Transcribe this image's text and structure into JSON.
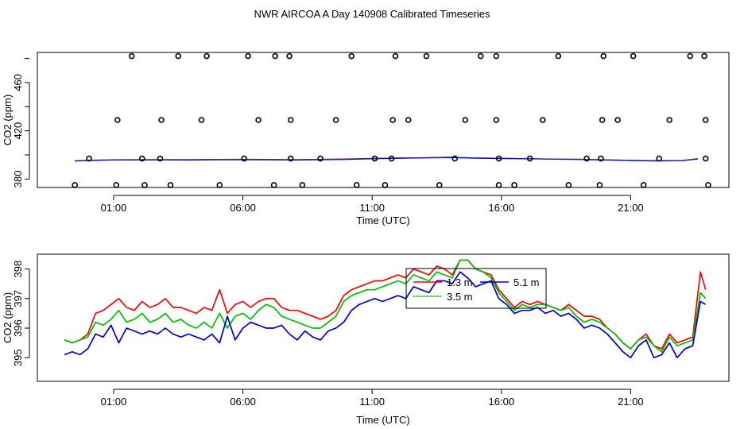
{
  "figure_title": "NWR AIRCOA A  Day 140908  Calibrated Timeseries",
  "chart_data": [
    {
      "type": "scatter",
      "title": "",
      "xlabel": "Time (UTC)",
      "ylabel": "CO2 (ppm)",
      "xlim": [
        -1.95,
        24.8
      ],
      "ylim": [
        373,
        485
      ],
      "xticks": [
        1,
        6,
        11,
        16,
        21
      ],
      "xtick_labels": [
        "01:00",
        "06:00",
        "11:00",
        "16:00",
        "21:00"
      ],
      "yticks": [
        380,
        420,
        460
      ],
      "ytick_labels": [
        "380",
        "420",
        "460"
      ],
      "series_lines": [
        {
          "name": "red",
          "color": "#ff0000",
          "x": [
            -0.5,
            0,
            1,
            2,
            3,
            4,
            5,
            6,
            7,
            8,
            9,
            10,
            11,
            12,
            13,
            14,
            15,
            16,
            17,
            18,
            19,
            20,
            21,
            22,
            23,
            23.6
          ],
          "values": [
            395,
            395.6,
            396,
            396.1,
            396.2,
            396.2,
            396.3,
            396.4,
            396.3,
            396.1,
            396.4,
            396.7,
            397.2,
            397.6,
            397.7,
            398.1,
            397.6,
            397.3,
            396.9,
            396.6,
            396.5,
            396.0,
            395.6,
            395.3,
            395.4,
            397.0
          ]
        },
        {
          "name": "green",
          "color": "#00aa00",
          "x": [
            -0.5,
            0,
            1,
            2,
            3,
            4,
            5,
            6,
            7,
            8,
            9,
            10,
            11,
            12,
            13,
            14,
            15,
            16,
            17,
            18,
            19,
            20,
            21,
            22,
            23,
            23.6
          ],
          "values": [
            395,
            395.5,
            395.9,
            396.0,
            396.0,
            396.0,
            396.1,
            396.2,
            396.0,
            395.9,
            396.2,
            396.5,
            397.0,
            397.4,
            397.6,
            398.1,
            397.5,
            397.2,
            396.9,
            396.6,
            396.4,
            395.9,
            395.5,
            395.2,
            395.3,
            396.9
          ]
        },
        {
          "name": "blue",
          "color": "#0000ff",
          "x": [
            -0.5,
            0,
            1,
            2,
            3,
            4,
            5,
            6,
            7,
            8,
            9,
            10,
            11,
            12,
            13,
            14,
            15,
            16,
            17,
            18,
            19,
            20,
            21,
            22,
            23,
            23.6
          ],
          "values": [
            395,
            395.3,
            395.8,
            395.8,
            395.8,
            395.7,
            395.9,
            396.0,
            395.9,
            395.7,
            395.9,
            396.3,
            396.8,
            397.2,
            397.5,
            397.8,
            397.3,
            397.0,
            396.8,
            396.5,
            396.2,
            395.7,
            395.3,
            395.0,
            395.2,
            396.6
          ]
        }
      ],
      "scatter_points": [
        {
          "x": -0.5,
          "y": 375
        },
        {
          "x": 1.1,
          "y": 375
        },
        {
          "x": 2.2,
          "y": 375
        },
        {
          "x": 3.2,
          "y": 375
        },
        {
          "x": 5.1,
          "y": 375
        },
        {
          "x": 7.2,
          "y": 375
        },
        {
          "x": 8.3,
          "y": 375
        },
        {
          "x": 10.4,
          "y": 375
        },
        {
          "x": 11.5,
          "y": 375
        },
        {
          "x": 13.6,
          "y": 375
        },
        {
          "x": 15.9,
          "y": 375
        },
        {
          "x": 16.5,
          "y": 375
        },
        {
          "x": 18.6,
          "y": 375
        },
        {
          "x": 19.8,
          "y": 375
        },
        {
          "x": 21.5,
          "y": 375
        },
        {
          "x": 24.0,
          "y": 375
        },
        {
          "x": 0.05,
          "y": 397
        },
        {
          "x": 2.1,
          "y": 397
        },
        {
          "x": 2.8,
          "y": 397
        },
        {
          "x": 6.05,
          "y": 397
        },
        {
          "x": 7.85,
          "y": 397
        },
        {
          "x": 9.0,
          "y": 397
        },
        {
          "x": 11.1,
          "y": 397
        },
        {
          "x": 11.75,
          "y": 397
        },
        {
          "x": 14.2,
          "y": 397
        },
        {
          "x": 15.9,
          "y": 397
        },
        {
          "x": 17.1,
          "y": 397
        },
        {
          "x": 19.3,
          "y": 397
        },
        {
          "x": 19.85,
          "y": 397
        },
        {
          "x": 22.1,
          "y": 397
        },
        {
          "x": 23.9,
          "y": 397
        },
        {
          "x": 1.15,
          "y": 429
        },
        {
          "x": 2.85,
          "y": 429
        },
        {
          "x": 4.4,
          "y": 429
        },
        {
          "x": 6.6,
          "y": 429
        },
        {
          "x": 7.85,
          "y": 429
        },
        {
          "x": 9.6,
          "y": 429
        },
        {
          "x": 11.8,
          "y": 429
        },
        {
          "x": 12.4,
          "y": 429
        },
        {
          "x": 14.6,
          "y": 429
        },
        {
          "x": 15.8,
          "y": 429
        },
        {
          "x": 17.6,
          "y": 429
        },
        {
          "x": 19.9,
          "y": 429
        },
        {
          "x": 20.5,
          "y": 429
        },
        {
          "x": 22.5,
          "y": 429
        },
        {
          "x": 23.9,
          "y": 429
        },
        {
          "x": 1.7,
          "y": 482
        },
        {
          "x": 3.5,
          "y": 482
        },
        {
          "x": 4.6,
          "y": 482
        },
        {
          "x": 6.2,
          "y": 482
        },
        {
          "x": 7.25,
          "y": 482
        },
        {
          "x": 7.8,
          "y": 482
        },
        {
          "x": 10.2,
          "y": 482
        },
        {
          "x": 11.9,
          "y": 482
        },
        {
          "x": 13.1,
          "y": 482
        },
        {
          "x": 15.2,
          "y": 482
        },
        {
          "x": 15.8,
          "y": 482
        },
        {
          "x": 18.2,
          "y": 482
        },
        {
          "x": 19.95,
          "y": 482
        },
        {
          "x": 21.1,
          "y": 482
        },
        {
          "x": 23.3,
          "y": 482
        },
        {
          "x": 23.85,
          "y": 482
        }
      ]
    },
    {
      "type": "line",
      "title": "",
      "xlabel": "Time (UTC)",
      "ylabel": "CO2 (ppm)",
      "xlim": [
        -1.95,
        24.8
      ],
      "ylim": [
        394.2,
        398.5
      ],
      "xticks": [
        1,
        6,
        11,
        16,
        21
      ],
      "xtick_labels": [
        "01:00",
        "06:00",
        "11:00",
        "16:00",
        "21:00"
      ],
      "yticks": [
        395,
        396,
        397,
        398
      ],
      "ytick_labels": [
        "395",
        "396",
        "397",
        "398"
      ],
      "legend": {
        "position": "top-center",
        "entries": [
          "1.3 m",
          "3.5 m",
          "5.1 m"
        ]
      },
      "series": [
        {
          "name": "1.3 m",
          "color": "#ff0000",
          "x": [
            -0.9,
            -0.6,
            -0.3,
            0,
            0.3,
            0.6,
            0.9,
            1.2,
            1.5,
            1.8,
            2.1,
            2.4,
            2.7,
            3.0,
            3.3,
            3.6,
            3.9,
            4.2,
            4.5,
            4.8,
            5.1,
            5.4,
            5.7,
            6.0,
            6.3,
            6.6,
            6.9,
            7.2,
            7.5,
            7.8,
            8.1,
            8.4,
            8.7,
            9.0,
            9.3,
            9.6,
            9.9,
            10.2,
            10.5,
            10.8,
            11.1,
            11.4,
            11.7,
            12.0,
            12.3,
            12.6,
            12.9,
            13.2,
            13.5,
            13.8,
            14.1,
            14.4,
            14.7,
            15.0,
            15.3,
            15.6,
            15.9,
            16.2,
            16.5,
            16.8,
            17.1,
            17.4,
            17.7,
            18.0,
            18.3,
            18.6,
            18.9,
            19.2,
            19.5,
            19.8,
            20.1,
            20.4,
            20.7,
            21.0,
            21.3,
            21.6,
            21.9,
            22.2,
            22.5,
            22.8,
            23.1,
            23.4,
            23.7,
            23.9
          ],
          "values": [
            395.6,
            395.5,
            395.6,
            395.8,
            396.5,
            396.6,
            396.8,
            397.0,
            396.7,
            396.6,
            396.9,
            396.7,
            396.8,
            397.0,
            396.7,
            396.7,
            396.6,
            396.5,
            396.7,
            396.6,
            397.3,
            396.5,
            396.8,
            396.9,
            396.7,
            396.9,
            397.0,
            397.0,
            396.7,
            396.6,
            396.6,
            396.5,
            396.4,
            396.3,
            396.4,
            396.6,
            397.1,
            397.3,
            397.4,
            397.5,
            397.6,
            397.6,
            397.7,
            397.8,
            397.7,
            398.0,
            397.9,
            397.8,
            398.1,
            398.0,
            397.8,
            398.3,
            398.3,
            398.0,
            397.9,
            397.8,
            397.3,
            397.0,
            396.7,
            396.9,
            396.8,
            396.9,
            396.8,
            396.7,
            396.6,
            396.8,
            396.6,
            396.4,
            396.4,
            396.3,
            396.0,
            395.8,
            395.5,
            395.3,
            395.6,
            395.8,
            395.4,
            395.3,
            395.8,
            395.5,
            395.6,
            395.7,
            397.9,
            397.3
          ]
        },
        {
          "name": "3.5 m",
          "color": "#00c000",
          "x": [
            -0.9,
            -0.6,
            -0.3,
            0,
            0.3,
            0.6,
            0.9,
            1.2,
            1.5,
            1.8,
            2.1,
            2.4,
            2.7,
            3.0,
            3.3,
            3.6,
            3.9,
            4.2,
            4.5,
            4.8,
            5.1,
            5.4,
            5.7,
            6.0,
            6.3,
            6.6,
            6.9,
            7.2,
            7.5,
            7.8,
            8.1,
            8.4,
            8.7,
            9.0,
            9.3,
            9.6,
            9.9,
            10.2,
            10.5,
            10.8,
            11.1,
            11.4,
            11.7,
            12.0,
            12.3,
            12.6,
            12.9,
            13.2,
            13.5,
            13.8,
            14.1,
            14.4,
            14.7,
            15.0,
            15.3,
            15.6,
            15.9,
            16.2,
            16.5,
            16.8,
            17.1,
            17.4,
            17.7,
            18.0,
            18.3,
            18.6,
            18.9,
            19.2,
            19.5,
            19.8,
            20.1,
            20.4,
            20.7,
            21.0,
            21.3,
            21.6,
            21.9,
            22.2,
            22.5,
            22.8,
            23.1,
            23.4,
            23.7,
            23.9
          ],
          "values": [
            395.6,
            395.5,
            395.6,
            395.7,
            396.2,
            396.1,
            396.3,
            396.6,
            396.2,
            396.3,
            396.5,
            396.2,
            396.3,
            396.5,
            396.2,
            396.3,
            396.1,
            396.0,
            396.2,
            396.0,
            396.5,
            396.0,
            396.4,
            396.5,
            396.3,
            396.6,
            396.8,
            396.7,
            396.4,
            396.3,
            396.2,
            396.1,
            396.0,
            396.0,
            396.2,
            396.4,
            396.9,
            397.1,
            397.2,
            397.3,
            397.3,
            397.4,
            397.5,
            397.6,
            397.5,
            397.8,
            397.7,
            397.6,
            397.9,
            397.8,
            397.7,
            398.3,
            398.3,
            398.0,
            397.9,
            397.7,
            397.2,
            396.9,
            396.6,
            396.8,
            396.7,
            396.8,
            396.8,
            396.7,
            396.6,
            396.7,
            396.4,
            396.2,
            396.3,
            396.2,
            396.0,
            395.8,
            395.5,
            395.3,
            395.6,
            395.7,
            395.4,
            395.2,
            395.7,
            395.4,
            395.5,
            395.6,
            397.2,
            397.0
          ]
        },
        {
          "name": "5.1 m",
          "color": "#0000cc",
          "x": [
            -0.9,
            -0.6,
            -0.3,
            0,
            0.3,
            0.6,
            0.9,
            1.2,
            1.5,
            1.8,
            2.1,
            2.4,
            2.7,
            3.0,
            3.3,
            3.6,
            3.9,
            4.2,
            4.5,
            4.8,
            5.1,
            5.4,
            5.7,
            6.0,
            6.3,
            6.6,
            6.9,
            7.2,
            7.5,
            7.8,
            8.1,
            8.4,
            8.7,
            9.0,
            9.3,
            9.6,
            9.9,
            10.2,
            10.5,
            10.8,
            11.1,
            11.4,
            11.7,
            12.0,
            12.3,
            12.6,
            12.9,
            13.2,
            13.5,
            13.8,
            14.1,
            14.4,
            14.7,
            15.0,
            15.3,
            15.6,
            15.9,
            16.2,
            16.5,
            16.8,
            17.1,
            17.4,
            17.7,
            18.0,
            18.3,
            18.6,
            18.9,
            19.2,
            19.5,
            19.8,
            20.1,
            20.4,
            20.7,
            21.0,
            21.3,
            21.6,
            21.9,
            22.2,
            22.5,
            22.8,
            23.1,
            23.4,
            23.7,
            23.9
          ],
          "values": [
            395.1,
            395.2,
            395.1,
            395.3,
            395.8,
            395.7,
            396.1,
            395.5,
            396.0,
            395.9,
            395.8,
            395.9,
            395.8,
            396.0,
            395.8,
            395.7,
            395.8,
            395.7,
            395.6,
            395.8,
            395.5,
            396.4,
            395.6,
            396.0,
            396.2,
            396.1,
            396.0,
            396.0,
            396.1,
            395.8,
            395.6,
            395.9,
            395.7,
            395.6,
            395.9,
            396.0,
            396.2,
            396.6,
            396.8,
            396.9,
            397.0,
            396.9,
            397.0,
            397.1,
            397.0,
            397.4,
            397.3,
            397.2,
            397.6,
            397.6,
            397.5,
            397.9,
            397.7,
            397.4,
            397.5,
            397.6,
            397.0,
            396.8,
            396.5,
            396.6,
            396.6,
            396.7,
            396.5,
            396.6,
            396.4,
            396.5,
            396.3,
            396.0,
            396.1,
            396.0,
            395.8,
            395.5,
            395.2,
            395.0,
            395.4,
            395.6,
            395.0,
            395.1,
            395.5,
            395.0,
            395.3,
            395.4,
            396.9,
            396.8
          ]
        }
      ]
    }
  ]
}
